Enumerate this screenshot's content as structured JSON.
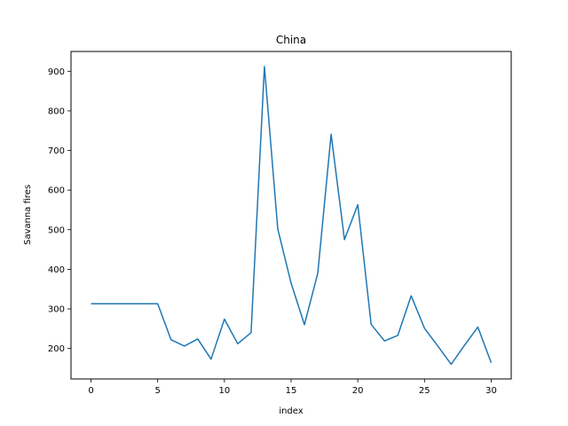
{
  "chart_data": {
    "type": "line",
    "title": "China",
    "xlabel": "index",
    "ylabel": "Savanna fires",
    "x": [
      0,
      1,
      2,
      3,
      4,
      5,
      6,
      7,
      8,
      9,
      10,
      11,
      12,
      13,
      14,
      15,
      16,
      17,
      18,
      19,
      20,
      21,
      22,
      23,
      24,
      25,
      26,
      27,
      28,
      29,
      30
    ],
    "series": [
      {
        "color": "#1f77b4",
        "values": [
          313,
          313,
          313,
          313,
          313,
          313,
          222,
          206,
          224,
          173,
          274,
          212,
          240,
          912,
          502,
          365,
          260,
          390,
          741,
          475,
          563,
          261,
          219,
          233,
          333,
          251,
          206,
          160,
          208,
          254,
          164
        ]
      }
    ],
    "xlim": [
      -1.5,
      31.5
    ],
    "ylim": [
      123,
      950
    ],
    "xticks": [
      0,
      5,
      10,
      15,
      20,
      25,
      30
    ],
    "yticks": [
      200,
      300,
      400,
      500,
      600,
      700,
      800,
      900
    ],
    "grid": false,
    "legend": false
  }
}
